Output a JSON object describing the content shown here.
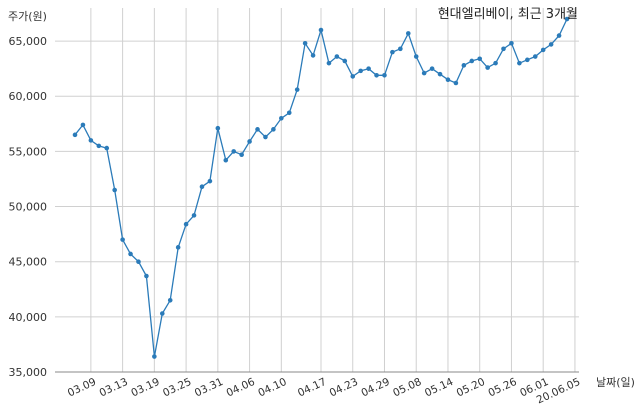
{
  "chart_data": {
    "type": "line",
    "title": "현대엘리베이, 최근 3개월",
    "ylabel": "주가(원)",
    "xlabel": "날짜(일)",
    "ylim": [
      35000,
      68000
    ],
    "yticks": [
      35000,
      40000,
      45000,
      50000,
      55000,
      60000,
      65000
    ],
    "ytick_labels": [
      "35,000",
      "40,000",
      "45,000",
      "50,000",
      "55,000",
      "60,000",
      "65,000"
    ],
    "grid": true,
    "line_color": "#2b7bb9",
    "xtick_labels": [
      {
        "label": "03.09",
        "index": 2
      },
      {
        "label": "03.13",
        "index": 6
      },
      {
        "label": "03.19",
        "index": 10
      },
      {
        "label": "03.25",
        "index": 14
      },
      {
        "label": "03.31",
        "index": 18
      },
      {
        "label": "04.06",
        "index": 22
      },
      {
        "label": "04.10",
        "index": 26
      },
      {
        "label": "04.17",
        "index": 31
      },
      {
        "label": "04.23",
        "index": 35
      },
      {
        "label": "04.29",
        "index": 39
      },
      {
        "label": "05.08",
        "index": 43
      },
      {
        "label": "05.14",
        "index": 47
      },
      {
        "label": "05.20",
        "index": 51
      },
      {
        "label": "05.26",
        "index": 55
      },
      {
        "label": "06.01",
        "index": 59
      },
      {
        "label": "20.06.05",
        "index": 63
      }
    ],
    "series": [
      {
        "values": [
          56500,
          57400,
          56000,
          55500,
          55300,
          51500,
          47000,
          45700,
          45000,
          43700,
          36400,
          40300,
          41500,
          46300,
          48400,
          49200,
          51800,
          52300,
          57100,
          54200,
          55000,
          54700,
          55900,
          57000,
          56300,
          57000,
          58000,
          58500,
          60600,
          64800,
          63700,
          66000,
          63000,
          63600,
          63200,
          61800,
          62300,
          62500,
          61900,
          61900,
          64000,
          64300,
          65700,
          63600,
          62100,
          62500,
          62000,
          61500,
          61200,
          62800,
          63200,
          63400,
          62600,
          63000,
          64300,
          64800,
          63000,
          63300,
          63600,
          64200,
          64700,
          65500,
          67000
        ]
      }
    ]
  }
}
